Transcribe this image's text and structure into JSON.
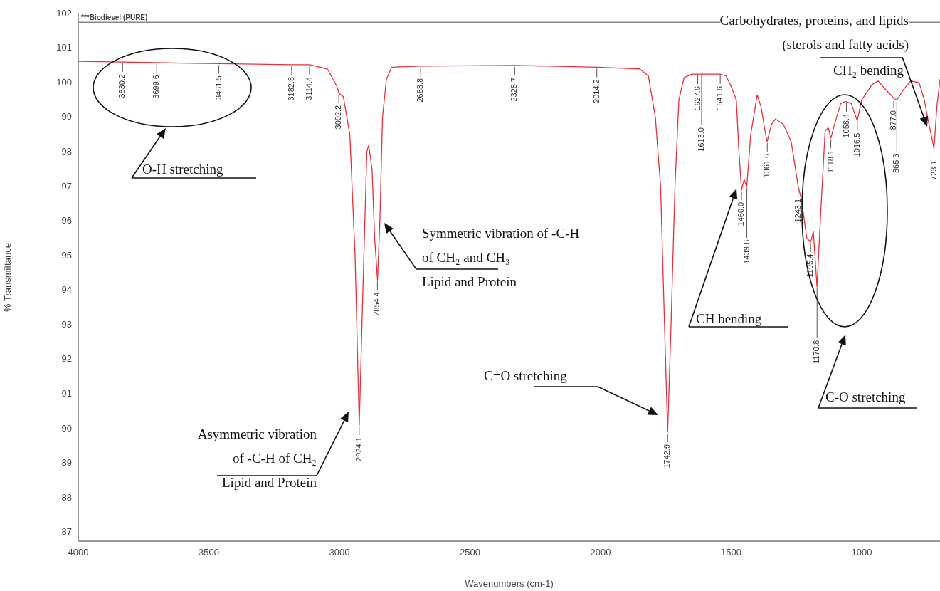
{
  "chart_data": {
    "type": "line",
    "xlabel": "Wavenumbers (cm-1)",
    "ylabel": "% Transmittance",
    "xlim": [
      4000,
      700
    ],
    "xticks": [
      4000,
      3500,
      3000,
      2500,
      2000,
      1500,
      1000
    ],
    "ylim": [
      86.75,
      102
    ],
    "yticks": [
      87,
      88,
      89,
      90,
      91,
      92,
      93,
      94,
      95,
      96,
      97,
      98,
      99,
      100,
      101,
      102
    ],
    "grid": false,
    "legend": false,
    "marker": "none",
    "line_style": "solid",
    "series": [
      {
        "color": "#e8303a",
        "x": [
          4000,
          3830,
          3700,
          3460,
          3182,
          3114,
          3046,
          3010,
          3002,
          2985,
          2960,
          2940,
          2924,
          2910,
          2895,
          2888,
          2875,
          2865,
          2854,
          2845,
          2835,
          2820,
          2800,
          2689,
          2329,
          2014,
          1850,
          1817,
          1790,
          1770,
          1755,
          1743,
          1730,
          1715,
          1700,
          1680,
          1650,
          1628,
          1613,
          1542,
          1520,
          1500,
          1480,
          1470,
          1460,
          1450,
          1440,
          1425,
          1400,
          1385,
          1370,
          1362,
          1345,
          1330,
          1300,
          1270,
          1243,
          1230,
          1210,
          1195,
          1185,
          1171,
          1155,
          1140,
          1128,
          1118,
          1100,
          1080,
          1065,
          1058,
          1040,
          1017,
          1000,
          960,
          937,
          920,
          877,
          865,
          840,
          812,
          780,
          760,
          745,
          723,
          712,
          700
        ],
        "values": [
          100.62,
          100.6,
          100.58,
          100.55,
          100.52,
          100.52,
          100.4,
          99.9,
          99.7,
          99.6,
          98.5,
          95,
          90.1,
          94,
          98,
          98.2,
          97.5,
          95.5,
          94.3,
          96,
          99,
          100.1,
          100.45,
          100.48,
          100.5,
          100.45,
          100.4,
          100.2,
          99,
          97,
          93,
          89.9,
          93,
          97,
          99.5,
          100.15,
          100.25,
          100.25,
          100.25,
          100.25,
          100.2,
          99.9,
          99.5,
          98,
          96.9,
          97.2,
          97,
          98.5,
          99.65,
          99.3,
          98.6,
          98.3,
          98.8,
          98.95,
          98.8,
          98.3,
          97,
          96.6,
          95.5,
          95.4,
          95.7,
          94.1,
          96.5,
          98.6,
          98.7,
          98.4,
          98.9,
          99.4,
          99.45,
          99.45,
          99.4,
          98.9,
          99.5,
          99.95,
          100.05,
          99.9,
          99.55,
          99.5,
          99.8,
          100.05,
          100,
          99.5,
          98.9,
          98.1,
          99.3,
          100.1
        ]
      }
    ],
    "ref_lines": [
      {
        "axis": "y",
        "value": 101.75,
        "label": "***Biodiesel (PURE)",
        "color": "#888888"
      }
    ],
    "annotations": [
      {
        "text": "3830.2",
        "x": 3830.2,
        "y": 100.6
      },
      {
        "text": "3699.6",
        "x": 3699.6,
        "y": 100.58
      },
      {
        "text": "3461.5",
        "x": 3461.5,
        "y": 100.55
      },
      {
        "text": "3182.8",
        "x": 3182.8,
        "y": 100.52
      },
      {
        "text": "3114.4",
        "x": 3114.4,
        "y": 100.52
      },
      {
        "text": "3002.2",
        "x": 3002.2,
        "y": 99.7
      },
      {
        "text": "2924.1",
        "x": 2924.1,
        "y": 90.1
      },
      {
        "text": "2854.4",
        "x": 2854.4,
        "y": 94.3
      },
      {
        "text": "2688.8",
        "x": 2688.8,
        "y": 100.48
      },
      {
        "text": "2328.7",
        "x": 2328.7,
        "y": 100.5
      },
      {
        "text": "2014.2",
        "x": 2014.2,
        "y": 100.45
      },
      {
        "text": "1742.9",
        "x": 1742.9,
        "y": 89.9
      },
      {
        "text": "1627.6",
        "x": 1627.6,
        "y": 100.25
      },
      {
        "text": "1613.0",
        "x": 1613.0,
        "y": 100.25
      },
      {
        "text": "1541.6",
        "x": 1541.6,
        "y": 100.25
      },
      {
        "text": "1460.0",
        "x": 1460.0,
        "y": 96.9
      },
      {
        "text": "1439.6",
        "x": 1439.6,
        "y": 97
      },
      {
        "text": "1361.6",
        "x": 1361.6,
        "y": 98.3
      },
      {
        "text": "1243.1",
        "x": 1243.1,
        "y": 97
      },
      {
        "text": "1195.4",
        "x": 1195.4,
        "y": 95.4
      },
      {
        "text": "1170.8",
        "x": 1170.8,
        "y": 94.1
      },
      {
        "text": "1118.1",
        "x": 1118.1,
        "y": 98.4
      },
      {
        "text": "1058.4",
        "x": 1058.4,
        "y": 99.45
      },
      {
        "text": "1016.5",
        "x": 1016.5,
        "y": 98.9
      },
      {
        "text": "877.0",
        "x": 877.0,
        "y": 99.55
      },
      {
        "text": "865.3",
        "x": 865.3,
        "y": 99.5
      },
      {
        "text": "723.1",
        "x": 723.1,
        "y": 98.1
      },
      "O-H stretching",
      "Symmetric vibration of -C-H\nof CH₂ and CH₃\nLipid and Protein",
      "Asymmetric vibration\nof -C-H of CH₂\nLipid and Protein",
      "C=O stretching",
      "CH bending",
      "C-O stretching",
      "Carbohydrates, proteins, and lipids\n(sterols and fatty acids)",
      "CH₂ bending"
    ]
  }
}
